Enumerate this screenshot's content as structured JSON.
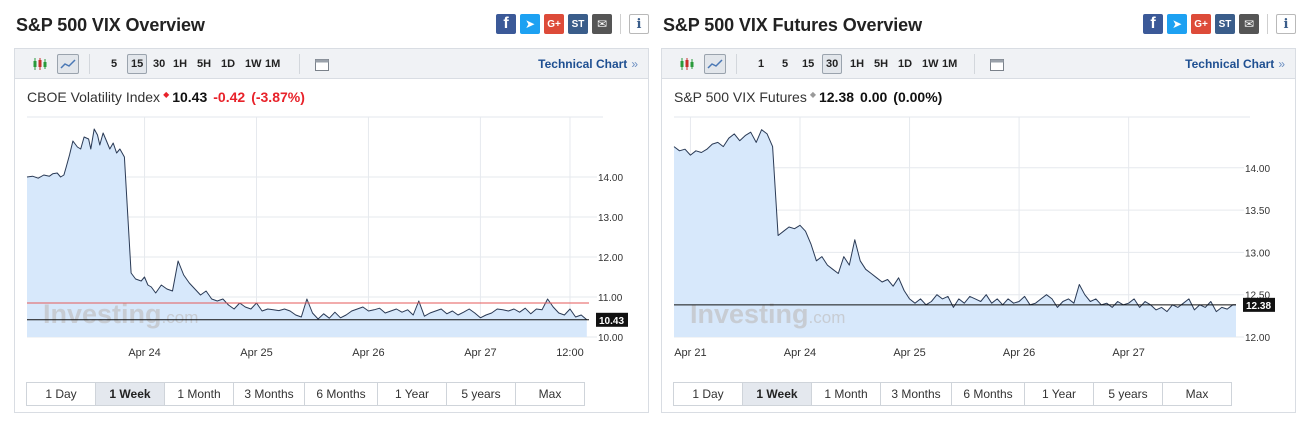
{
  "panels": [
    {
      "title": "S&P 500 VIX Overview",
      "share_icons": [
        "facebook-icon",
        "twitter-icon",
        "google-plus-icon",
        "stocktwits-icon",
        "mail-icon",
        "info-icon"
      ],
      "toolbar": {
        "chart_type_icons": [
          "candlestick-icon",
          "area-chart-icon"
        ],
        "active_chart_type": "area-chart-icon",
        "intervals": [
          "5",
          "15",
          "30",
          "1H",
          "5H",
          "1D",
          "1W",
          "1M"
        ],
        "active_interval": "15",
        "extra_icon": "calendar-icon",
        "technical_link": "Technical Chart",
        "technical_chevron": "»"
      },
      "quote": {
        "name": "CBOE Volatility Index",
        "last": "10.43",
        "change": "-0.42",
        "change_pct": "(-3.87%)",
        "change_color": "#e8222a",
        "dot_color": "#e8222a"
      },
      "watermark": {
        "main": "Investing",
        "suffix": ".com"
      },
      "range_tabs": [
        "1 Day",
        "1 Week",
        "1 Month",
        "3 Months",
        "6 Months",
        "1 Year",
        "5 years",
        "Max"
      ],
      "active_range": "1 Week",
      "colors": {
        "fill": "#d7e8fb",
        "line": "#2a3a55",
        "ref_line": "#e55a5a",
        "last_line": "#111111",
        "last_label_bg": "#111111"
      }
    },
    {
      "title": "S&P 500 VIX Futures Overview",
      "share_icons": [
        "facebook-icon",
        "twitter-icon",
        "google-plus-icon",
        "stocktwits-icon",
        "mail-icon",
        "info-icon"
      ],
      "toolbar": {
        "chart_type_icons": [
          "candlestick-icon",
          "area-chart-icon"
        ],
        "active_chart_type": "area-chart-icon",
        "intervals": [
          "1",
          "5",
          "15",
          "30",
          "1H",
          "5H",
          "1D",
          "1W",
          "1M"
        ],
        "active_interval": "30",
        "extra_icon": "calendar-icon",
        "technical_link": "Technical Chart",
        "technical_chevron": "»"
      },
      "quote": {
        "name": "S&P 500 VIX Futures",
        "last": "12.38",
        "change": "0.00",
        "change_pct": "(0.00%)",
        "change_color": "#111111",
        "dot_color": "#9a9a9a"
      },
      "watermark": {
        "main": "Investing",
        "suffix": ".com"
      },
      "range_tabs": [
        "1 Day",
        "1 Week",
        "1 Month",
        "3 Months",
        "6 Months",
        "1 Year",
        "5 years",
        "Max"
      ],
      "active_range": "1 Week",
      "colors": {
        "fill": "#d7e8fb",
        "line": "#2a3a55",
        "last_line": "#111111",
        "last_label_bg": "#111111"
      }
    }
  ],
  "chart_data": [
    {
      "type": "area",
      "title": "CBOE Volatility Index",
      "x_unit": "days",
      "x_ticks": [
        {
          "label": "Apr 24",
          "x": 1.0
        },
        {
          "label": "Apr 25",
          "x": 2.0
        },
        {
          "label": "Apr 26",
          "x": 3.0
        },
        {
          "label": "Apr 27",
          "x": 4.0
        },
        {
          "label": "12:00",
          "x": 4.8
        }
      ],
      "y_ticks": [
        "10.00",
        "11.00",
        "12.00",
        "13.00",
        "14.00"
      ],
      "xlim": [
        -0.05,
        4.97
      ],
      "ylim": [
        10.0,
        15.5
      ],
      "grid": true,
      "reference_value": 10.85,
      "last_value": 10.43,
      "last_label": "10.43",
      "series": [
        {
          "x": [
            -0.05,
            0.0,
            0.05,
            0.1,
            0.15,
            0.18,
            0.22,
            0.25,
            0.28,
            0.3,
            0.33,
            0.36,
            0.4,
            0.43,
            0.46,
            0.5,
            0.52,
            0.55,
            0.58,
            0.6,
            0.63,
            0.66,
            0.69,
            0.72,
            0.75,
            0.78,
            0.82,
            0.88,
            0.92,
            0.97,
            1.0,
            1.03,
            1.06,
            1.1,
            1.15,
            1.2,
            1.25,
            1.3,
            1.35,
            1.4,
            1.45,
            1.5,
            1.55,
            1.6,
            1.65,
            1.7,
            1.75,
            1.8,
            1.85,
            1.9,
            1.95,
            2.0,
            2.05,
            2.1,
            2.15,
            2.2,
            2.25,
            2.3,
            2.35,
            2.4,
            2.45,
            2.5,
            2.55,
            2.6,
            2.65,
            2.7,
            2.75,
            2.8,
            2.85,
            2.9,
            2.95,
            3.0,
            3.05,
            3.1,
            3.15,
            3.2,
            3.25,
            3.3,
            3.35,
            3.4,
            3.45,
            3.5,
            3.55,
            3.6,
            3.65,
            3.7,
            3.75,
            3.8,
            3.85,
            3.9,
            3.95,
            4.0,
            4.05,
            4.1,
            4.15,
            4.2,
            4.25,
            4.3,
            4.35,
            4.4,
            4.45,
            4.5,
            4.55,
            4.6,
            4.65,
            4.7,
            4.75,
            4.8,
            4.85,
            4.9,
            4.95
          ],
          "y": [
            14.0,
            14.02,
            13.97,
            14.05,
            14.02,
            14.08,
            14.1,
            14.0,
            14.05,
            14.25,
            14.55,
            14.9,
            14.75,
            14.7,
            15.0,
            14.95,
            14.7,
            15.2,
            15.05,
            14.8,
            15.1,
            14.9,
            14.7,
            14.85,
            14.6,
            14.7,
            14.5,
            11.6,
            11.45,
            11.4,
            11.5,
            11.3,
            11.25,
            11.1,
            11.3,
            11.2,
            11.15,
            11.9,
            11.55,
            11.35,
            11.2,
            11.05,
            11.15,
            10.95,
            10.9,
            10.95,
            10.8,
            10.7,
            10.85,
            10.75,
            10.7,
            10.85,
            10.65,
            10.7,
            10.68,
            10.66,
            10.7,
            10.65,
            10.55,
            10.5,
            10.95,
            10.6,
            10.45,
            10.58,
            10.47,
            10.62,
            10.48,
            10.55,
            10.65,
            10.7,
            10.75,
            10.65,
            10.68,
            10.72,
            10.6,
            10.65,
            10.7,
            10.62,
            10.68,
            10.55,
            10.9,
            10.52,
            10.6,
            10.65,
            10.7,
            10.58,
            10.65,
            10.55,
            10.62,
            10.7,
            10.6,
            10.48,
            10.55,
            10.6,
            10.7,
            10.68,
            10.65,
            10.7,
            10.62,
            10.72,
            10.58,
            10.7,
            10.68,
            10.95,
            10.75,
            10.6,
            10.55,
            10.7,
            10.5,
            10.55,
            10.43
          ]
        }
      ]
    },
    {
      "type": "area",
      "title": "S&P 500 VIX Futures",
      "x_unit": "days",
      "x_ticks": [
        {
          "label": "Apr 21",
          "x": 0.0
        },
        {
          "label": "Apr 24",
          "x": 1.0
        },
        {
          "label": "Apr 25",
          "x": 2.0
        },
        {
          "label": "Apr 26",
          "x": 3.0
        },
        {
          "label": "Apr 27",
          "x": 4.0
        }
      ],
      "y_ticks": [
        "12.00",
        "12.50",
        "13.00",
        "13.50",
        "14.00"
      ],
      "xlim": [
        -0.15,
        4.98
      ],
      "ylim": [
        12.0,
        14.6
      ],
      "grid": true,
      "last_value": 12.38,
      "last_label": "12.38",
      "series": [
        {
          "x": [
            -0.15,
            -0.1,
            -0.05,
            0.0,
            0.05,
            0.1,
            0.15,
            0.2,
            0.25,
            0.3,
            0.35,
            0.4,
            0.45,
            0.5,
            0.55,
            0.6,
            0.65,
            0.7,
            0.75,
            0.8,
            0.85,
            0.9,
            0.95,
            1.0,
            1.05,
            1.1,
            1.15,
            1.2,
            1.25,
            1.3,
            1.35,
            1.4,
            1.45,
            1.5,
            1.55,
            1.6,
            1.65,
            1.7,
            1.75,
            1.8,
            1.85,
            1.9,
            1.95,
            2.0,
            2.05,
            2.1,
            2.15,
            2.2,
            2.25,
            2.3,
            2.35,
            2.4,
            2.45,
            2.5,
            2.55,
            2.6,
            2.65,
            2.7,
            2.75,
            2.8,
            2.85,
            2.9,
            2.95,
            3.0,
            3.05,
            3.1,
            3.15,
            3.2,
            3.25,
            3.3,
            3.35,
            3.4,
            3.45,
            3.5,
            3.55,
            3.6,
            3.65,
            3.7,
            3.75,
            3.8,
            3.85,
            3.9,
            3.95,
            4.0,
            4.05,
            4.1,
            4.15,
            4.2,
            4.25,
            4.3,
            4.35,
            4.4,
            4.45,
            4.5,
            4.55,
            4.6,
            4.65,
            4.7,
            4.75,
            4.8,
            4.85,
            4.9,
            4.95,
            4.98
          ],
          "y": [
            14.25,
            14.2,
            14.22,
            14.15,
            14.2,
            14.18,
            14.22,
            14.28,
            14.3,
            14.25,
            14.35,
            14.4,
            14.32,
            14.38,
            14.42,
            14.3,
            14.45,
            14.4,
            14.25,
            13.2,
            13.25,
            13.3,
            13.28,
            13.32,
            13.25,
            13.1,
            12.9,
            12.95,
            12.85,
            12.8,
            12.75,
            12.95,
            12.85,
            13.15,
            12.9,
            12.8,
            12.75,
            12.7,
            12.65,
            12.68,
            12.6,
            12.7,
            12.55,
            12.45,
            12.4,
            12.45,
            12.38,
            12.42,
            12.5,
            12.45,
            12.48,
            12.35,
            12.45,
            12.4,
            12.48,
            12.45,
            12.42,
            12.5,
            12.4,
            12.45,
            12.38,
            12.45,
            12.4,
            12.42,
            12.48,
            12.38,
            12.4,
            12.45,
            12.5,
            12.45,
            12.35,
            12.42,
            12.45,
            12.4,
            12.62,
            12.5,
            12.42,
            12.45,
            12.38,
            12.4,
            12.35,
            12.42,
            12.38,
            12.4,
            12.45,
            12.35,
            12.42,
            12.38,
            12.32,
            12.35,
            12.3,
            12.38,
            12.35,
            12.4,
            12.45,
            12.32,
            12.38,
            12.35,
            12.42,
            12.3,
            12.35,
            12.33,
            12.38,
            12.38
          ]
        }
      ]
    }
  ]
}
